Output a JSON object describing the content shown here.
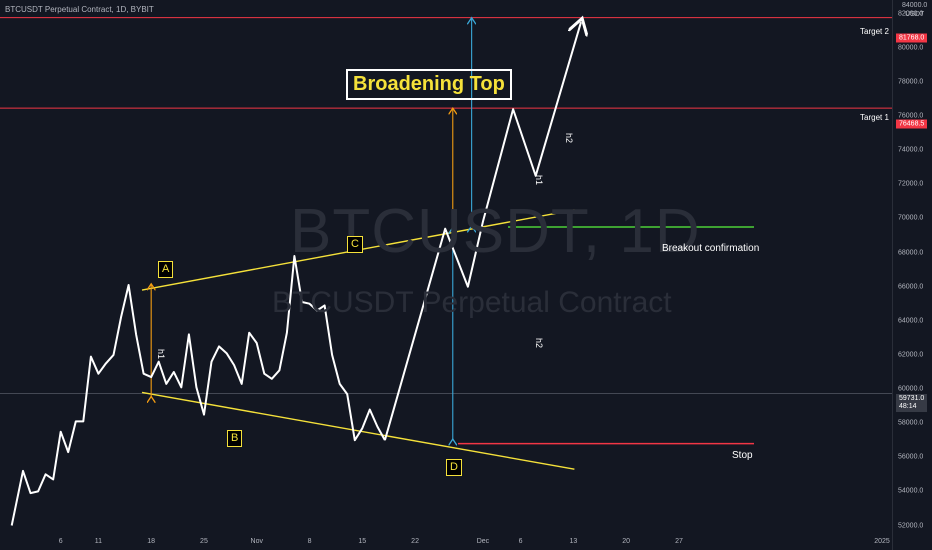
{
  "header": {
    "symbol": "BTCUSDT Perpetual Contract, 1D, BYBIT"
  },
  "watermark": {
    "ticker": "BTCUSDT, 1D",
    "name": "BTCUSDT Perpetual Contract"
  },
  "axis": {
    "unit_top": "84000.0",
    "unit": "USDT",
    "y_ticks": [
      "82000.0",
      "80000.0",
      "78000.0",
      "76000.0",
      "74000.0",
      "72000.0",
      "70000.0",
      "68000.0",
      "66000.0",
      "64000.0",
      "62000.0",
      "60000.0",
      "58000.0",
      "56000.0",
      "54000.0",
      "52000.0"
    ],
    "x_ticks": [
      "6",
      "11",
      "18",
      "25",
      "Nov",
      "8",
      "15",
      "22",
      "Dec",
      "6",
      "13",
      "20",
      "27",
      "2025"
    ]
  },
  "price_tags": {
    "target2": {
      "value": "81768.0",
      "color": "#f23645"
    },
    "target1": {
      "value": "76468.5",
      "color": "#f23645"
    },
    "current": {
      "value": "59731.0",
      "countdown": "48:14",
      "color": "#363a45"
    }
  },
  "labels": {
    "title": "Broadening Top",
    "target1": "Target 1",
    "target2": "Target 2",
    "breakout": "Breakout confirmation",
    "stop": "Stop",
    "h1": "h1",
    "h2": "h2",
    "A": "A",
    "B": "B",
    "C": "C",
    "D": "D"
  },
  "colors": {
    "background": "#131722",
    "price_line": "#ffffff",
    "trendline": "#f5e13a",
    "target_line": "#f23645",
    "breakout_line": "#4cd137",
    "stop_line": "#f23645",
    "h1_arrow": "#f39c12",
    "h2_arrow": "#3aa8d8"
  },
  "chart_data": {
    "type": "line",
    "title": "Broadening Top",
    "x_unit": "day index from Oct 1",
    "ylim": [
      51500,
      84500
    ],
    "y_ticks": [
      52000,
      54000,
      56000,
      58000,
      60000,
      62000,
      64000,
      66000,
      68000,
      70000,
      72000,
      74000,
      76000,
      78000,
      80000,
      82000,
      84000
    ],
    "x_tick_days": [
      5,
      10,
      17,
      24,
      31,
      38,
      45,
      52,
      61,
      66,
      73,
      80,
      87,
      94
    ],
    "x_tick_labels": [
      "6",
      "11",
      "18",
      "25",
      "Nov",
      "8",
      "15",
      "22",
      "Dec",
      "6",
      "13",
      "20",
      "27",
      "2025"
    ],
    "series": [
      {
        "x": [
          -1.5,
          0,
          1,
          2,
          3,
          4,
          5,
          6,
          7,
          8,
          9,
          10,
          11,
          12,
          13,
          14,
          15,
          16,
          17,
          18,
          19,
          20,
          21,
          22,
          23,
          24,
          25,
          26,
          27,
          28,
          29,
          30,
          31,
          32,
          33,
          34,
          35,
          36,
          37,
          38,
          39,
          40,
          41,
          42,
          43,
          44,
          45,
          46,
          47,
          48
        ],
        "y": [
          52000,
          55200,
          53900,
          54000,
          55000,
          54700,
          57500,
          56300,
          58100,
          58100,
          61900,
          60900,
          61500,
          62000,
          64200,
          66100,
          63200,
          60900,
          60700,
          61600,
          60300,
          61000,
          60100,
          63200,
          60100,
          58500,
          61600,
          62500,
          62100,
          61400,
          60300,
          63300,
          62700,
          60900,
          60600,
          61100,
          63300,
          67800,
          65100,
          65000,
          64600,
          64900,
          62000,
          60300,
          59700,
          57000,
          57700,
          58800,
          57800,
          57000
        ]
      }
    ],
    "projection": {
      "x": [
        48,
        56,
        59,
        61,
        65,
        68,
        74
      ],
      "y": [
        57000,
        69400,
        66000,
        69800,
        76400,
        72500,
        81500
      ]
    },
    "trendlines": {
      "upper": {
        "x": [
          13,
          73
        ],
        "y": [
          65800,
          70500
        ]
      },
      "lower": {
        "x": [
          13,
          73
        ],
        "y": [
          59800,
          55300
        ]
      }
    },
    "levels": {
      "target1": 76468.5,
      "target2": 81768.0,
      "current": 59731.0,
      "stop": 56800,
      "breakout": 69500
    },
    "points": {
      "A": {
        "x": 17,
        "y": 66100
      },
      "B": {
        "x": 24,
        "y": 58600
      },
      "C": {
        "x": 37,
        "y": 67800
      },
      "D": {
        "x": 48,
        "y": 57000
      }
    },
    "measures": {
      "h1_pattern": {
        "x": 17,
        "y": [
          59500,
          66100
        ]
      },
      "h1_projection": {
        "x": 57,
        "y": [
          69400,
          76400
        ]
      },
      "h2_pattern": {
        "x": 57,
        "y": [
          57000,
          69400
        ]
      },
      "h2_projection": {
        "x": 59.5,
        "y": [
          69500,
          81700
        ]
      }
    }
  }
}
